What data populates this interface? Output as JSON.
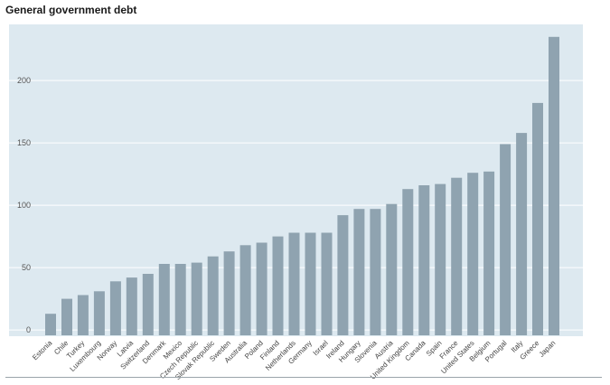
{
  "chart_data": {
    "type": "bar",
    "title": "General government debt",
    "xlabel": "",
    "ylabel": "",
    "ylim": [
      -5,
      245
    ],
    "yticks": [
      0,
      50,
      100,
      150,
      200
    ],
    "grid": true,
    "colors": {
      "bar": "#8fa3b0",
      "plot_bg": "#dde9f0",
      "grid": "#ffffff"
    },
    "categories": [
      "Estonia",
      "Chile",
      "Turkey",
      "Luxembourg",
      "Norway",
      "Latvia",
      "Switzerland",
      "Denmark",
      "Mexico",
      "Czech Republic",
      "Slovak Republic",
      "Sweden",
      "Australia",
      "Poland",
      "Finland",
      "Netherlands",
      "Germany",
      "Israel",
      "Ireland",
      "Hungary",
      "Slovenia",
      "Austria",
      "United Kingdom",
      "Canada",
      "Spain",
      "France",
      "United States",
      "Belgium",
      "Portugal",
      "Italy",
      "Greece",
      "Japan"
    ],
    "values": [
      13,
      25,
      28,
      31,
      39,
      42,
      45,
      53,
      53,
      54,
      59,
      63,
      68,
      70,
      75,
      78,
      78,
      78,
      92,
      97,
      97,
      101,
      113,
      116,
      117,
      122,
      126,
      127,
      149,
      158,
      182,
      235
    ]
  }
}
